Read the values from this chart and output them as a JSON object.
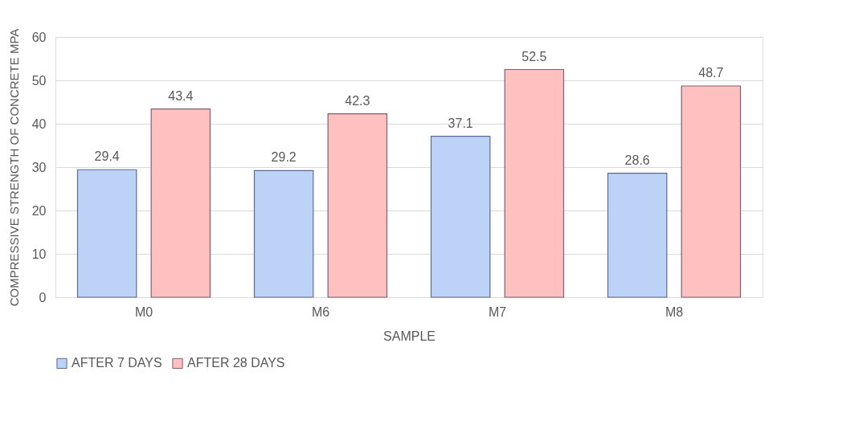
{
  "chart_data": {
    "type": "bar",
    "xlabel": "SAMPLE",
    "ylabel": "COMPRESSIVE STRENGTH OF CONCRETE MPA",
    "categories": [
      "M0",
      "M6",
      "M7",
      "M8"
    ],
    "series": [
      {
        "name": "AFTER 7 DAYS",
        "color": "#bcd2f7",
        "values": [
          29.4,
          29.2,
          37.1,
          28.6
        ]
      },
      {
        "name": "AFTER 28 DAYS",
        "color": "#ffc0c0",
        "values": [
          43.4,
          42.3,
          52.5,
          48.7
        ]
      }
    ],
    "ylim": [
      0,
      60
    ],
    "yticks": [
      0,
      10,
      20,
      30,
      40,
      50,
      60
    ],
    "grid": "y",
    "legend": "bottom",
    "data_labels": true
  }
}
